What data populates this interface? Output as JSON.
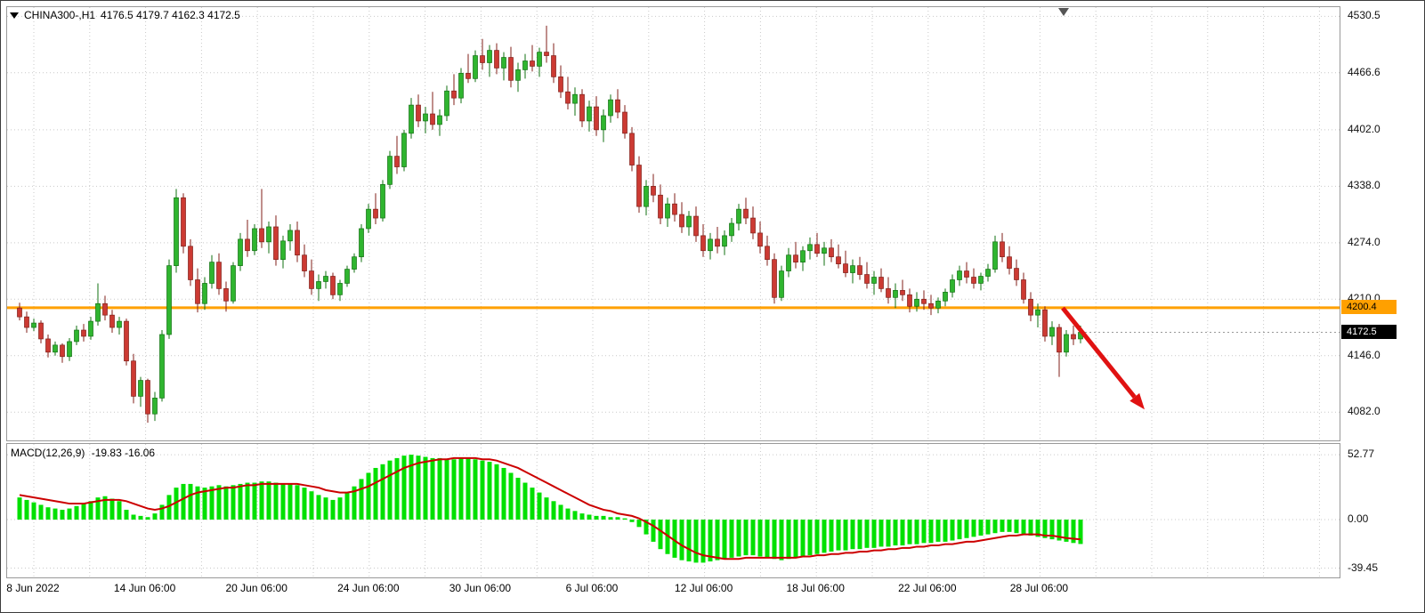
{
  "header": {
    "title": "CHINA300-,H1",
    "ohlc_text": "4176.5 4179.7 4162.3 4172.5"
  },
  "indicator": {
    "name": "MACD(12,26,9)",
    "values_text": "-19.83 -16.06"
  },
  "colors": {
    "bull": "#2FB52F",
    "bull_border": "#117011",
    "bear": "#CC3A33",
    "bear_border": "#801F19",
    "macd_histogram": "#00E000",
    "macd_signal": "#CC0000",
    "grid": "#c9c9c9",
    "hline": "#FFA000",
    "arrow": "#E01212",
    "last_price_line": "#999999"
  },
  "chart_data": [
    {
      "type": "candlestick",
      "symbol": "CHINA300-",
      "timeframe": "H1",
      "ohlc_display": {
        "open": 4176.5,
        "high": 4179.7,
        "low": 4162.3,
        "close": 4172.5
      },
      "ylim": [
        4050,
        4541
      ],
      "y_ticks": [
        4530.5,
        4466.6,
        4402.0,
        4338.0,
        4274.0,
        4210.0,
        4146.0,
        4082.0
      ],
      "y_tick_labels": [
        "4530.5",
        "4466.6",
        "4402.0",
        "4338.0",
        "4274.0",
        "4210.0",
        "4146.0",
        "4082.0"
      ],
      "x_labels": [
        "8 Jun 2022",
        "14 Jun 06:00",
        "20 Jun 06:00",
        "24 Jun 06:00",
        "30 Jun 06:00",
        "6 Jul 06:00",
        "12 Jul 06:00",
        "18 Jul 06:00",
        "22 Jul 06:00",
        "28 Jul 06:00"
      ],
      "horizontal_line": {
        "value": 4200.4,
        "label": "4200.4"
      },
      "last_price": {
        "value": 4172.5,
        "label": "4172.5"
      },
      "trend_arrow": {
        "from_index": 146.5,
        "from_price": 4200,
        "to_index": 158,
        "to_price": 4085
      },
      "candles": [
        [
          4200,
          4206,
          4186,
          4190
        ],
        [
          4190,
          4196,
          4172,
          4178
        ],
        [
          4178,
          4188,
          4174,
          4183
        ],
        [
          4183,
          4186,
          4160,
          4165
        ],
        [
          4165,
          4170,
          4144,
          4150
        ],
        [
          4150,
          4162,
          4146,
          4158
        ],
        [
          4158,
          4160,
          4138,
          4145
        ],
        [
          4145,
          4166,
          4140,
          4162
        ],
        [
          4162,
          4180,
          4158,
          4175
        ],
        [
          4175,
          4182,
          4162,
          4168
        ],
        [
          4168,
          4190,
          4164,
          4185
        ],
        [
          4185,
          4228,
          4180,
          4205
        ],
        [
          4205,
          4214,
          4186,
          4192
        ],
        [
          4192,
          4198,
          4172,
          4178
        ],
        [
          4178,
          4190,
          4170,
          4185
        ],
        [
          4185,
          4188,
          4135,
          4140
        ],
        [
          4140,
          4148,
          4092,
          4100
        ],
        [
          4100,
          4122,
          4088,
          4118
        ],
        [
          4118,
          4120,
          4070,
          4080
        ],
        [
          4080,
          4105,
          4072,
          4098
        ],
        [
          4098,
          4175,
          4094,
          4170
        ],
        [
          4170,
          4255,
          4165,
          4248
        ],
        [
          4248,
          4335,
          4240,
          4325
        ],
        [
          4325,
          4330,
          4262,
          4270
        ],
        [
          4270,
          4278,
          4225,
          4232
        ],
        [
          4232,
          4245,
          4195,
          4205
        ],
        [
          4205,
          4235,
          4198,
          4228
        ],
        [
          4228,
          4260,
          4222,
          4252
        ],
        [
          4252,
          4262,
          4215,
          4222
        ],
        [
          4222,
          4230,
          4196,
          4208
        ],
        [
          4208,
          4252,
          4205,
          4248
        ],
        [
          4248,
          4285,
          4242,
          4278
        ],
        [
          4278,
          4300,
          4258,
          4265
        ],
        [
          4265,
          4295,
          4260,
          4290
        ],
        [
          4290,
          4335,
          4268,
          4275
        ],
        [
          4275,
          4298,
          4262,
          4292
        ],
        [
          4292,
          4305,
          4248,
          4255
        ],
        [
          4255,
          4282,
          4245,
          4276
        ],
        [
          4276,
          4295,
          4265,
          4288
        ],
        [
          4288,
          4298,
          4252,
          4260
        ],
        [
          4260,
          4272,
          4235,
          4242
        ],
        [
          4242,
          4255,
          4215,
          4222
        ],
        [
          4222,
          4238,
          4208,
          4230
        ],
        [
          4230,
          4242,
          4222,
          4236
        ],
        [
          4236,
          4240,
          4210,
          4215
        ],
        [
          4215,
          4232,
          4208,
          4228
        ],
        [
          4228,
          4248,
          4224,
          4244
        ],
        [
          4244,
          4262,
          4240,
          4258
        ],
        [
          4258,
          4295,
          4252,
          4290
        ],
        [
          4290,
          4318,
          4285,
          4312
        ],
        [
          4312,
          4330,
          4295,
          4302
        ],
        [
          4302,
          4345,
          4298,
          4340
        ],
        [
          4340,
          4378,
          4335,
          4372
        ],
        [
          4372,
          4395,
          4352,
          4360
        ],
        [
          4360,
          4402,
          4355,
          4398
        ],
        [
          4398,
          4438,
          4392,
          4430
        ],
        [
          4430,
          4442,
          4405,
          4412
        ],
        [
          4412,
          4428,
          4398,
          4420
        ],
        [
          4420,
          4445,
          4402,
          4408
        ],
        [
          4408,
          4425,
          4395,
          4418
        ],
        [
          4418,
          4452,
          4412,
          4446
        ],
        [
          4446,
          4465,
          4430,
          4438
        ],
        [
          4438,
          4472,
          4432,
          4466
        ],
        [
          4466,
          4488,
          4455,
          4460
        ],
        [
          4460,
          4492,
          4456,
          4486
        ],
        [
          4486,
          4505,
          4470,
          4478
        ],
        [
          4478,
          4498,
          4462,
          4492
        ],
        [
          4492,
          4500,
          4465,
          4472
        ],
        [
          4472,
          4490,
          4458,
          4484
        ],
        [
          4484,
          4496,
          4450,
          4458
        ],
        [
          4458,
          4478,
          4445,
          4470
        ],
        [
          4470,
          4488,
          4460,
          4480
        ],
        [
          4480,
          4498,
          4468,
          4474
        ],
        [
          4474,
          4495,
          4462,
          4490
        ],
        [
          4490,
          4520,
          4478,
          4486
        ],
        [
          4486,
          4500,
          4455,
          4462
        ],
        [
          4462,
          4475,
          4438,
          4445
        ],
        [
          4445,
          4462,
          4425,
          4432
        ],
        [
          4432,
          4450,
          4418,
          4442
        ],
        [
          4442,
          4448,
          4405,
          4412
        ],
        [
          4412,
          4435,
          4400,
          4428
        ],
        [
          4428,
          4440,
          4395,
          4402
        ],
        [
          4402,
          4425,
          4388,
          4418
        ],
        [
          4418,
          4442,
          4410,
          4436
        ],
        [
          4436,
          4448,
          4415,
          4422
        ],
        [
          4422,
          4430,
          4392,
          4398
        ],
        [
          4398,
          4405,
          4355,
          4362
        ],
        [
          4362,
          4372,
          4308,
          4315
        ],
        [
          4315,
          4345,
          4305,
          4338
        ],
        [
          4338,
          4352,
          4320,
          4328
        ],
        [
          4328,
          4340,
          4295,
          4302
        ],
        [
          4302,
          4325,
          4292,
          4318
        ],
        [
          4318,
          4330,
          4298,
          4306
        ],
        [
          4306,
          4320,
          4285,
          4292
        ],
        [
          4292,
          4310,
          4282,
          4304
        ],
        [
          4304,
          4315,
          4275,
          4282
        ],
        [
          4282,
          4295,
          4258,
          4265
        ],
        [
          4265,
          4285,
          4255,
          4278
        ],
        [
          4278,
          4292,
          4262,
          4270
        ],
        [
          4270,
          4288,
          4260,
          4282
        ],
        [
          4282,
          4302,
          4275,
          4296
        ],
        [
          4296,
          4318,
          4288,
          4312
        ],
        [
          4312,
          4325,
          4295,
          4302
        ],
        [
          4302,
          4315,
          4278,
          4285
        ],
        [
          4285,
          4298,
          4262,
          4270
        ],
        [
          4270,
          4282,
          4248,
          4255
        ],
        [
          4255,
          4262,
          4205,
          4212
        ],
        [
          4212,
          4248,
          4208,
          4242
        ],
        [
          4242,
          4268,
          4235,
          4260
        ],
        [
          4260,
          4275,
          4245,
          4252
        ],
        [
          4252,
          4270,
          4242,
          4265
        ],
        [
          4265,
          4280,
          4255,
          4272
        ],
        [
          4272,
          4285,
          4258,
          4262
        ],
        [
          4262,
          4275,
          4248,
          4268
        ],
        [
          4268,
          4278,
          4252,
          4258
        ],
        [
          4258,
          4272,
          4245,
          4250
        ],
        [
          4250,
          4265,
          4235,
          4240
        ],
        [
          4240,
          4255,
          4228,
          4248
        ],
        [
          4248,
          4258,
          4232,
          4238
        ],
        [
          4238,
          4252,
          4222,
          4228
        ],
        [
          4228,
          4242,
          4215,
          4235
        ],
        [
          4235,
          4245,
          4218,
          4222
        ],
        [
          4222,
          4235,
          4205,
          4212
        ],
        [
          4212,
          4228,
          4200,
          4220
        ],
        [
          4220,
          4232,
          4208,
          4215
        ],
        [
          4215,
          4222,
          4195,
          4202
        ],
        [
          4202,
          4218,
          4196,
          4210
        ],
        [
          4210,
          4220,
          4198,
          4205
        ],
        [
          4205,
          4215,
          4192,
          4200
        ],
        [
          4200,
          4212,
          4194,
          4208
        ],
        [
          4208,
          4222,
          4202,
          4218
        ],
        [
          4218,
          4238,
          4212,
          4232
        ],
        [
          4232,
          4248,
          4225,
          4242
        ],
        [
          4242,
          4252,
          4228,
          4235
        ],
        [
          4235,
          4245,
          4222,
          4228
        ],
        [
          4228,
          4240,
          4220,
          4236
        ],
        [
          4236,
          4250,
          4230,
          4244
        ],
        [
          4244,
          4282,
          4240,
          4275
        ],
        [
          4275,
          4285,
          4252,
          4258
        ],
        [
          4258,
          4270,
          4238,
          4245
        ],
        [
          4245,
          4255,
          4225,
          4232
        ],
        [
          4232,
          4240,
          4205,
          4210
        ],
        [
          4210,
          4218,
          4185,
          4192
        ],
        [
          4192,
          4205,
          4178,
          4198
        ],
        [
          4198,
          4202,
          4162,
          4168
        ],
        [
          4168,
          4185,
          4158,
          4178
        ],
        [
          4178,
          4182,
          4122,
          4150
        ],
        [
          4150,
          4175,
          4145,
          4170
        ],
        [
          4170,
          4180,
          4158,
          4165
        ],
        [
          4165,
          4180,
          4160,
          4172.5
        ]
      ]
    },
    {
      "type": "macd",
      "label": "MACD(12,26,9)",
      "current_values": [
        -19.83,
        -16.06
      ],
      "ylim": [
        -47,
        61.5
      ],
      "y_ticks": [
        52.77,
        0,
        -39.45
      ],
      "y_tick_labels": [
        "52.77",
        "0.00",
        "-39.45"
      ],
      "histogram": [
        18,
        16,
        14,
        12,
        10,
        9,
        8,
        9,
        11,
        13,
        15,
        18,
        19,
        17,
        15,
        8,
        4,
        3,
        2,
        5,
        12,
        20,
        26,
        29,
        29,
        27,
        26,
        27,
        28,
        27,
        28,
        29,
        30,
        30,
        31,
        31,
        30,
        29,
        29,
        28,
        26,
        23,
        20,
        18,
        16,
        18,
        22,
        27,
        33,
        38,
        42,
        45,
        48,
        50,
        52,
        52.77,
        52,
        51,
        50,
        50,
        49,
        49,
        50,
        50,
        49,
        48,
        47,
        45,
        42,
        38,
        34,
        30,
        26,
        22,
        18,
        15,
        12,
        9,
        7,
        5,
        4,
        3,
        3,
        2,
        2,
        1,
        -2,
        -6,
        -12,
        -18,
        -24,
        -28,
        -31,
        -33,
        -34,
        -35,
        -35,
        -34,
        -33,
        -32,
        -31,
        -30,
        -29,
        -29,
        -30,
        -31,
        -32,
        -33,
        -32,
        -31,
        -30,
        -29,
        -28,
        -27,
        -26,
        -25,
        -25,
        -24,
        -24,
        -23,
        -23,
        -22,
        -22,
        -21,
        -21,
        -20,
        -20,
        -19,
        -19,
        -18,
        -18,
        -17,
        -16,
        -15,
        -14,
        -13,
        -12,
        -11,
        -10,
        -10,
        -11,
        -12,
        -13,
        -14,
        -15,
        -16,
        -17,
        -18,
        -19,
        -19.83
      ],
      "signal": [
        20,
        19,
        18,
        17,
        16,
        15,
        14,
        13,
        13,
        13,
        14,
        15,
        16,
        16,
        16,
        15,
        13,
        11,
        9,
        8,
        9,
        11,
        14,
        17,
        20,
        22,
        23,
        24,
        25,
        26,
        26,
        27,
        28,
        28,
        29,
        29,
        29,
        29,
        29,
        29,
        28,
        27,
        26,
        24,
        23,
        22,
        22,
        23,
        25,
        27,
        30,
        33,
        36,
        39,
        42,
        44,
        46,
        47,
        48,
        49,
        49,
        50,
        50,
        50,
        50,
        49,
        49,
        48,
        46,
        44,
        42,
        39,
        36,
        33,
        30,
        27,
        24,
        21,
        18,
        15,
        12,
        10,
        8,
        7,
        5,
        4,
        3,
        1,
        -2,
        -5,
        -9,
        -13,
        -17,
        -21,
        -24,
        -27,
        -29,
        -30,
        -31,
        -32,
        -32,
        -32,
        -31,
        -31,
        -31,
        -31,
        -31,
        -31,
        -31,
        -31,
        -30,
        -30,
        -29,
        -29,
        -28,
        -28,
        -27,
        -27,
        -26,
        -26,
        -25,
        -25,
        -24,
        -24,
        -23,
        -23,
        -22,
        -22,
        -21,
        -21,
        -20,
        -20,
        -19,
        -18,
        -18,
        -17,
        -16,
        -15,
        -14,
        -13,
        -13,
        -12,
        -12,
        -12,
        -13,
        -13,
        -14,
        -15,
        -15.5,
        -16.06
      ]
    }
  ]
}
